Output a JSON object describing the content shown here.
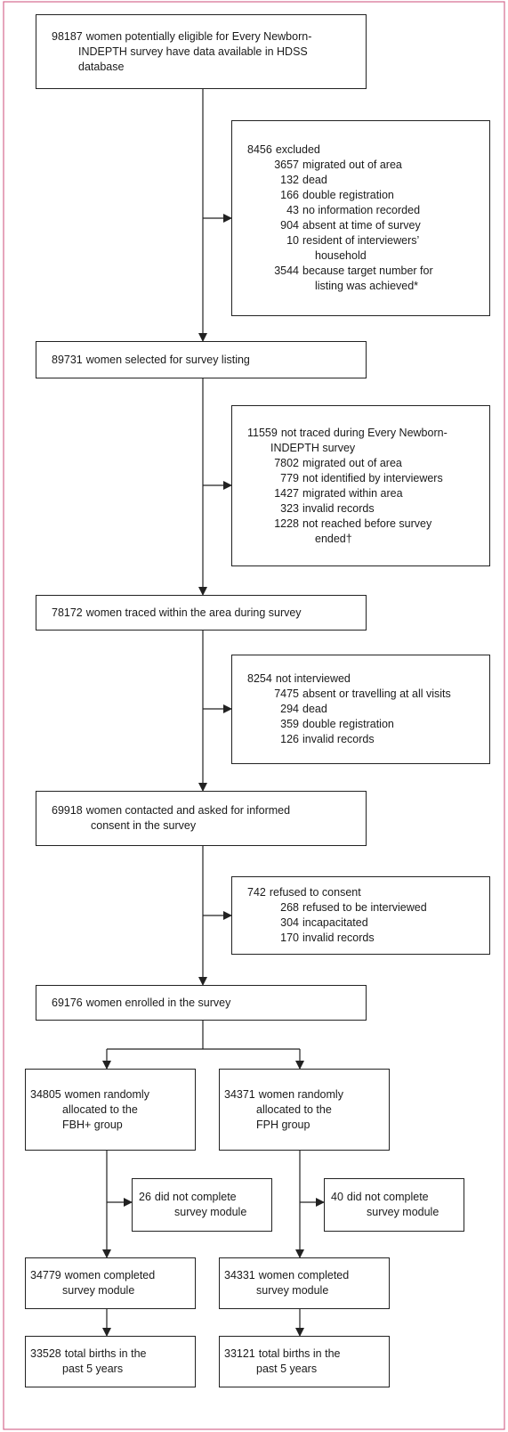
{
  "main": [
    {
      "number": "98187",
      "lines": [
        "women potentially eligible for Every Newborn-",
        "INDEPTH survey have data available in HDSS",
        "database"
      ]
    },
    {
      "number": "89731",
      "lines": [
        "women selected for survey listing"
      ]
    },
    {
      "number": "78172",
      "lines": [
        "women traced within the area during survey"
      ]
    },
    {
      "number": "69918",
      "lines": [
        "women contacted and asked for informed",
        "consent in the survey"
      ]
    },
    {
      "number": "69176",
      "lines": [
        "women enrolled in the survey"
      ]
    }
  ],
  "exclusions": [
    {
      "number": "8456",
      "text": "excluded",
      "items": [
        {
          "number": "3657",
          "lines": [
            "migrated out of area"
          ]
        },
        {
          "number": "132",
          "lines": [
            "dead"
          ]
        },
        {
          "number": "166",
          "lines": [
            "double registration"
          ]
        },
        {
          "number": "43",
          "lines": [
            "no information recorded"
          ]
        },
        {
          "number": "904",
          "lines": [
            "absent at time of survey"
          ]
        },
        {
          "number": "10",
          "lines": [
            "resident of interviewers’",
            "household"
          ]
        },
        {
          "number": "3544",
          "lines": [
            "because target number for",
            "listing was achieved*"
          ]
        }
      ]
    },
    {
      "number": "11559",
      "text": "not traced during Every Newborn-",
      "cont": "INDEPTH survey",
      "items": [
        {
          "number": "7802",
          "lines": [
            "migrated out of area"
          ]
        },
        {
          "number": "779",
          "lines": [
            "not identified by interviewers"
          ]
        },
        {
          "number": "1427",
          "lines": [
            "migrated within area"
          ]
        },
        {
          "number": "323",
          "lines": [
            "invalid records"
          ]
        },
        {
          "number": "1228",
          "lines": [
            "not reached before survey",
            "ended†"
          ]
        }
      ]
    },
    {
      "number": "8254",
      "text": "not interviewed",
      "items": [
        {
          "number": "7475",
          "lines": [
            "absent or travelling at all visits"
          ]
        },
        {
          "number": "294",
          "lines": [
            "dead"
          ]
        },
        {
          "number": "359",
          "lines": [
            "double registration"
          ]
        },
        {
          "number": "126",
          "lines": [
            "invalid records"
          ]
        }
      ]
    },
    {
      "number": "742",
      "text": "refused to consent",
      "items": [
        {
          "number": "268",
          "lines": [
            "refused to be interviewed"
          ]
        },
        {
          "number": "304",
          "lines": [
            "incapacitated"
          ]
        },
        {
          "number": "170",
          "lines": [
            "invalid records"
          ]
        }
      ]
    }
  ],
  "arms": [
    {
      "allocated": {
        "number": "34805",
        "lines": [
          "women randomly",
          "allocated to the",
          "FBH+ group"
        ]
      },
      "excluded": {
        "number": "26",
        "lines": [
          "did not complete",
          "survey module"
        ]
      },
      "completed": {
        "number": "34779",
        "lines": [
          "women completed",
          "survey module"
        ]
      },
      "births": {
        "number": "33528",
        "lines": [
          "total births in the",
          "past 5 years"
        ]
      }
    },
    {
      "allocated": {
        "number": "34371",
        "lines": [
          "women randomly",
          "allocated to the",
          "FPH group"
        ]
      },
      "excluded": {
        "number": "40",
        "lines": [
          "did not complete",
          "survey module"
        ]
      },
      "completed": {
        "number": "34331",
        "lines": [
          "women completed",
          "survey module"
        ]
      },
      "births": {
        "number": "33121",
        "lines": [
          "total births in the",
          "past 5 years"
        ]
      }
    }
  ]
}
